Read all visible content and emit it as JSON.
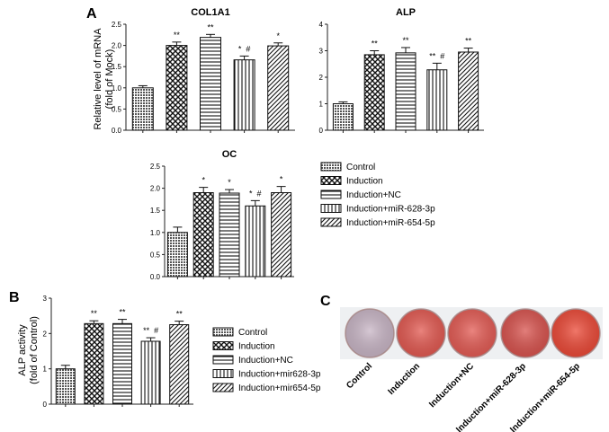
{
  "panels": {
    "A": "A",
    "B": "B",
    "C": "C"
  },
  "chart_data": [
    {
      "id": "col1a1",
      "type": "bar",
      "title": "COL1A1",
      "categories": [
        "Control",
        "Induction",
        "Induction+NC",
        "Induction+miR-628-3p",
        "Induction+miR-654-5p"
      ],
      "values": [
        1.0,
        2.0,
        2.19,
        1.66,
        1.99
      ],
      "errors": [
        0.05,
        0.08,
        0.07,
        0.09,
        0.07
      ],
      "marks": [
        "",
        "**",
        "**",
        "*  #",
        "*"
      ],
      "ylim": [
        0,
        2.5
      ],
      "yticks": [
        "0.0",
        "0.5",
        "1.0",
        "1.5",
        "2.0",
        "2.5"
      ],
      "ylabel": "Relative level of mRNA\n(fold of Mock)"
    },
    {
      "id": "alp",
      "type": "bar",
      "title": "ALP",
      "categories": [
        "Control",
        "Induction",
        "Induction+NC",
        "Induction+miR-628-3p",
        "Induction+miR-654-5p"
      ],
      "values": [
        1.0,
        2.85,
        2.92,
        2.28,
        2.95
      ],
      "errors": [
        0.07,
        0.15,
        0.2,
        0.25,
        0.15
      ],
      "marks": [
        "",
        "**",
        "**",
        "**  #",
        "**"
      ],
      "ylim": [
        0,
        4
      ],
      "yticks": [
        "0",
        "1",
        "2",
        "3",
        "4"
      ],
      "ylabel": ""
    },
    {
      "id": "oc",
      "type": "bar",
      "title": "OC",
      "categories": [
        "Control",
        "Induction",
        "Induction+NC",
        "Induction+miR-628-3p",
        "Induction+miR-654-5p"
      ],
      "values": [
        1.0,
        1.9,
        1.89,
        1.6,
        1.9
      ],
      "errors": [
        0.12,
        0.12,
        0.08,
        0.12,
        0.14
      ],
      "marks": [
        "",
        "*",
        "*",
        "*  #",
        "*"
      ],
      "ylim": [
        0,
        2.5
      ],
      "yticks": [
        "0.0",
        "0.5",
        "1.0",
        "1.5",
        "2.0",
        "2.5"
      ],
      "ylabel": ""
    },
    {
      "id": "alp-activity",
      "type": "bar",
      "title": "",
      "categories": [
        "Control",
        "Induction",
        "Induction+NC",
        "Induction+mir628-3p",
        "Induction+mir654-5p"
      ],
      "values": [
        1.0,
        2.28,
        2.28,
        1.78,
        2.25
      ],
      "errors": [
        0.1,
        0.08,
        0.12,
        0.1,
        0.1
      ],
      "marks": [
        "",
        "**",
        "**",
        "**  #",
        "**"
      ],
      "ylim": [
        0,
        3
      ],
      "yticks": [
        "0",
        "1",
        "2",
        "3"
      ],
      "ylabel": "ALP activity\n(fold of Control)"
    }
  ],
  "legend_top": [
    "Control",
    "Induction",
    "Induction+NC",
    "Induction+miR-628-3p",
    "Induction+miR-654-5p"
  ],
  "legend_bottom": [
    "Control",
    "Induction",
    "Induction+NC",
    "Induction+mir628-3p",
    "Induction+mir654-5p"
  ],
  "plates": {
    "labels": [
      "Control",
      "Induction",
      "Induction+NC",
      "Induction+miR-628-3p",
      "Induction+miR-654-5p"
    ],
    "colors": [
      "#c9b6c6",
      "#e35a52",
      "#e45c55",
      "#d9544f",
      "#ec4a38"
    ]
  },
  "colors": {
    "axis": "#222222",
    "plate_bg": "#eef0f2"
  }
}
